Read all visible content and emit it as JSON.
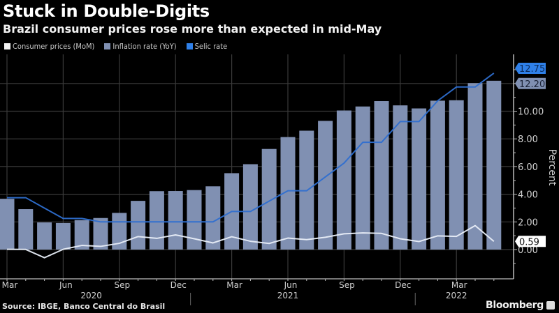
{
  "header": {
    "title": "Stuck in Double-Digits",
    "subtitle": "Brazil consumer prices rose more than expected in mid-May"
  },
  "footer": {
    "source": "Source: IBGE, Banco Central do Brasil",
    "brand": "Bloomberg",
    "brand_icon": "bloomberg-terminal-icon"
  },
  "colors": {
    "background": "#000000",
    "bars": "#8090b2",
    "mom_line": "#e8eef8",
    "selic_line": "#2e6fd0",
    "grid": "#3a3a3a",
    "axis_text": "#d0d0d0"
  },
  "chart_data": {
    "type": "bar",
    "title": "Stuck in Double-Digits",
    "subtitle": "Brazil consumer prices rose more than expected in mid-May",
    "xlabel": "",
    "ylabel": "Percent",
    "ylim": [
      -1,
      13
    ],
    "grid": true,
    "legend_position": "top-left",
    "y_axis_side": "right",
    "y_ticks": [
      "0.00",
      "2.00",
      "4.00",
      "6.00",
      "8.00",
      "10.00"
    ],
    "x_month_ticks": [
      {
        "label": "Mar",
        "index": 0
      },
      {
        "label": "Jun",
        "index": 3
      },
      {
        "label": "Sep",
        "index": 6
      },
      {
        "label": "Dec",
        "index": 9
      },
      {
        "label": "Mar",
        "index": 12
      },
      {
        "label": "Jun",
        "index": 15
      },
      {
        "label": "Sep",
        "index": 18
      },
      {
        "label": "Dec",
        "index": 21
      },
      {
        "label": "Mar",
        "index": 24
      }
    ],
    "x_year_labels": [
      {
        "label": "2020",
        "index": 4.5
      },
      {
        "label": "2021",
        "index": 15
      },
      {
        "label": "2022",
        "index": 24
      }
    ],
    "categories": [
      "Mar 2020",
      "Apr 2020",
      "May 2020",
      "Jun 2020",
      "Jul 2020",
      "Aug 2020",
      "Sep 2020",
      "Oct 2020",
      "Nov 2020",
      "Dec 2020",
      "Jan 2021",
      "Feb 2021",
      "Mar 2021",
      "Apr 2021",
      "May 2021",
      "Jun 2021",
      "Jul 2021",
      "Aug 2021",
      "Sep 2021",
      "Oct 2021",
      "Nov 2021",
      "Dec 2021",
      "Jan 2022",
      "Feb 2022",
      "Mar 2022",
      "Apr 2022",
      "May 2022"
    ],
    "series": [
      {
        "name": "Consumer prices (MoM)",
        "type": "line",
        "color": "#e8eef8",
        "values": [
          0.02,
          0.01,
          -0.59,
          0.02,
          0.3,
          0.23,
          0.45,
          0.94,
          0.81,
          1.06,
          0.78,
          0.48,
          0.93,
          0.6,
          0.44,
          0.83,
          0.72,
          0.89,
          1.14,
          1.2,
          1.17,
          0.78,
          0.58,
          0.99,
          0.95,
          1.73,
          0.59
        ],
        "end_label": "0.59"
      },
      {
        "name": "Inflation rate (YoY)",
        "type": "bar",
        "color": "#8090b2",
        "values": [
          3.67,
          2.92,
          1.96,
          1.92,
          2.13,
          2.28,
          2.65,
          3.52,
          4.22,
          4.23,
          4.3,
          4.57,
          5.52,
          6.17,
          7.27,
          8.13,
          8.59,
          9.3,
          10.05,
          10.34,
          10.73,
          10.42,
          10.2,
          10.76,
          10.79,
          12.03,
          12.2
        ],
        "end_label": "12.20"
      },
      {
        "name": "Selic rate",
        "type": "line",
        "color": "#2e6fd0",
        "values": [
          3.75,
          3.75,
          3.0,
          2.25,
          2.25,
          2.0,
          2.0,
          2.0,
          2.0,
          2.0,
          2.0,
          2.0,
          2.75,
          2.75,
          3.5,
          4.25,
          4.25,
          5.25,
          6.25,
          7.75,
          7.75,
          9.25,
          9.25,
          10.75,
          11.75,
          11.75,
          12.75
        ],
        "end_label": "12.75"
      }
    ]
  }
}
